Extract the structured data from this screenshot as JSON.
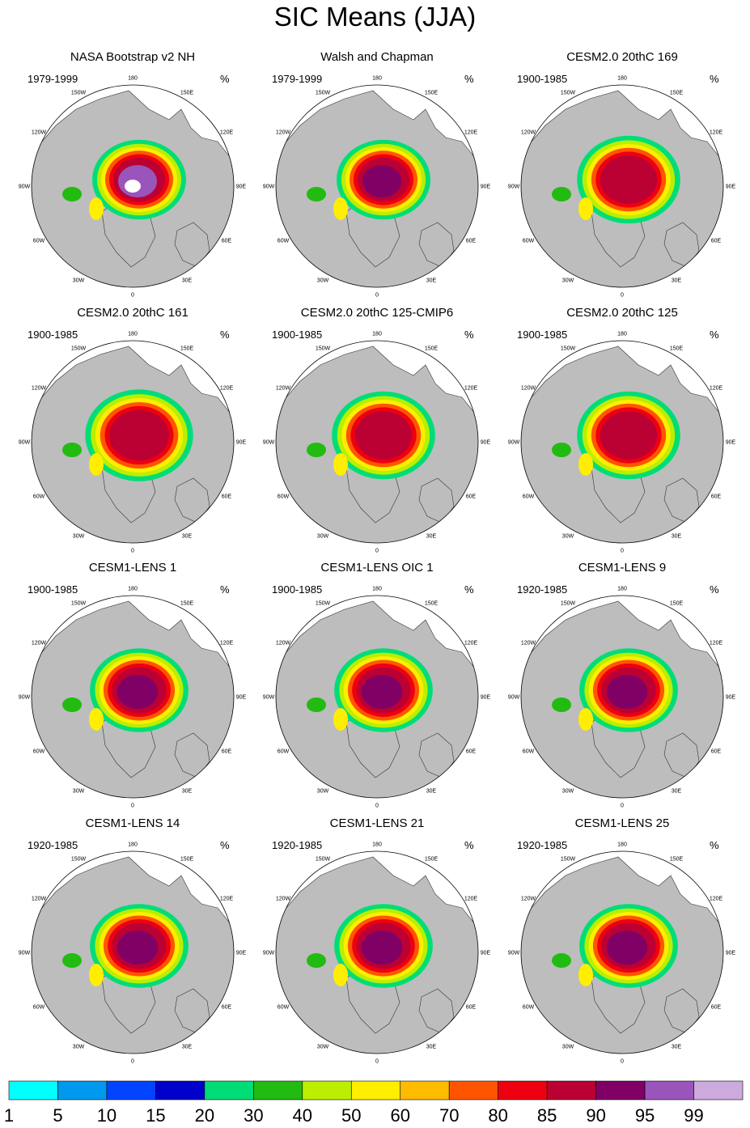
{
  "page_title": "SIC Means (JJA)",
  "panel_unit": "%",
  "chart_data": {
    "type": "heatmap",
    "title": "SIC Means (JJA)",
    "projection": "north polar stereographic",
    "units": "%",
    "longitude_labels": [
      "180",
      "150W",
      "150E",
      "120W",
      "120E",
      "90W",
      "90E",
      "60W",
      "60E",
      "30W",
      "30E",
      "0"
    ],
    "colorbar": {
      "levels": [
        "1",
        "5",
        "10",
        "15",
        "20",
        "30",
        "40",
        "50",
        "60",
        "70",
        "80",
        "85",
        "90",
        "95",
        "99"
      ],
      "colors": [
        "#00ffff",
        "#0099ee",
        "#0044ff",
        "#0000cc",
        "#00dd77",
        "#22bb11",
        "#bbee00",
        "#ffee00",
        "#ffbb00",
        "#ff5500",
        "#ee0011",
        "#bb0033",
        "#800066",
        "#9955bb",
        "#ccaadd"
      ]
    },
    "panels": [
      {
        "title": "NASA Bootstrap v2 NH",
        "period": "1979-1999",
        "core_level": "95-99",
        "pack_extent": 1.0
      },
      {
        "title": "Walsh and Chapman",
        "period": "1979-1999",
        "core_level": "90-95",
        "pack_extent": 1.0
      },
      {
        "title": "CESM2.0 20thC 169",
        "period": "1900-1985",
        "core_level": "85-90",
        "pack_extent": 1.1
      },
      {
        "title": "CESM2.0 20thC 161",
        "period": "1900-1985",
        "core_level": "85-90",
        "pack_extent": 1.15
      },
      {
        "title": "CESM2.0 20thC 125-CMIP6",
        "period": "1900-1985",
        "core_level": "85-90",
        "pack_extent": 1.1
      },
      {
        "title": "CESM2.0 20thC 125",
        "period": "1900-1985",
        "core_level": "85-90",
        "pack_extent": 1.1
      },
      {
        "title": "CESM1-LENS 1",
        "period": "1900-1985",
        "core_level": "90-95",
        "pack_extent": 1.05
      },
      {
        "title": "CESM1-LENS OIC 1",
        "period": "1900-1985",
        "core_level": "90-95",
        "pack_extent": 1.05
      },
      {
        "title": "CESM1-LENS 9",
        "period": "1920-1985",
        "core_level": "90-95",
        "pack_extent": 1.05
      },
      {
        "title": "CESM1-LENS 14",
        "period": "1920-1985",
        "core_level": "90-95",
        "pack_extent": 1.05
      },
      {
        "title": "CESM1-LENS 21",
        "period": "1920-1985",
        "core_level": "90-95",
        "pack_extent": 1.05
      },
      {
        "title": "CESM1-LENS 25",
        "period": "1920-1985",
        "core_level": "90-95",
        "pack_extent": 1.05
      }
    ]
  }
}
